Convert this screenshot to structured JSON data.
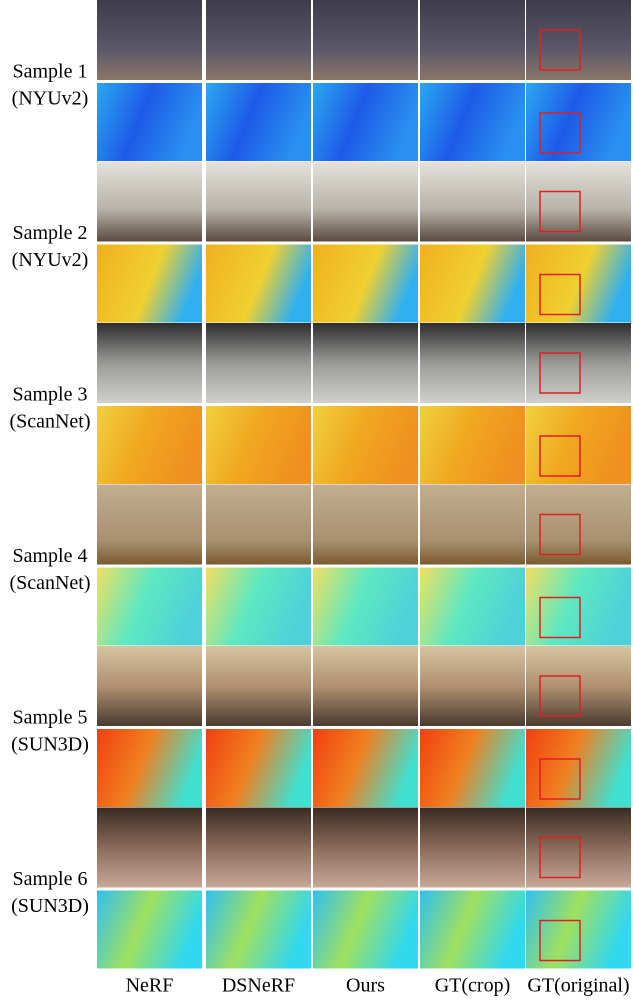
{
  "samples": [
    {
      "label": "Sample 1",
      "dataset": "(NYUv2)"
    },
    {
      "label": "Sample 2",
      "dataset": "(NYUv2)"
    },
    {
      "label": "Sample 3",
      "dataset": "(ScanNet)"
    },
    {
      "label": "Sample 4",
      "dataset": "(ScanNet)"
    },
    {
      "label": "Sample 5",
      "dataset": "(SUN3D)"
    },
    {
      "label": "Sample 6",
      "dataset": "(SUN3D)"
    }
  ],
  "columns": [
    "NeRF",
    "DSNeRF",
    "Ours",
    "GT(crop)",
    "GT(original)"
  ]
}
